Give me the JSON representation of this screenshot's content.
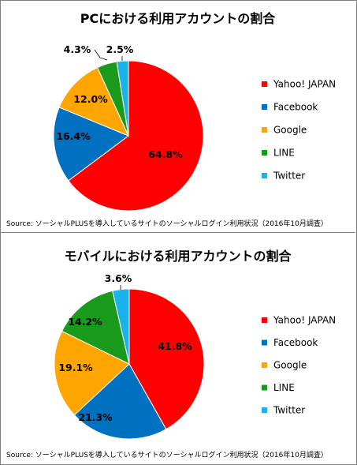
{
  "chart_data": [
    {
      "type": "pie",
      "title": "PCにおける利用アカウントの割合",
      "categories": [
        "Yahoo! JAPAN",
        "Facebook",
        "Google",
        "LINE",
        "Twitter"
      ],
      "values": [
        64.8,
        16.4,
        12.0,
        4.3,
        2.5
      ],
      "data_labels": [
        "64.8%",
        "16.4%",
        "12.0%",
        "4.3%",
        "2.5%"
      ],
      "colors": [
        "#ff0000",
        "#0070c0",
        "#ffa500",
        "#1a9a1a",
        "#1ab2e8"
      ],
      "legend_position": "right",
      "source": "Source: ソーシャルPLUSを導入しているサイトのソーシャルログイン利用状況（2016年10月調査）"
    },
    {
      "type": "pie",
      "title": "モバイルにおける利用アカウントの割合",
      "categories": [
        "Yahoo! JAPAN",
        "Facebook",
        "Google",
        "LINE",
        "Twitter"
      ],
      "values": [
        41.8,
        21.3,
        19.1,
        14.2,
        3.6
      ],
      "data_labels": [
        "41.8%",
        "21.3%",
        "19.1%",
        "14.2%",
        "3.6%"
      ],
      "colors": [
        "#ff0000",
        "#0070c0",
        "#ffa500",
        "#1a9a1a",
        "#1ab2e8"
      ],
      "legend_position": "right",
      "source": "Source: ソーシャルPLUSを導入しているサイトのソーシャルログイン利用状況（2016年10月調査）"
    }
  ]
}
